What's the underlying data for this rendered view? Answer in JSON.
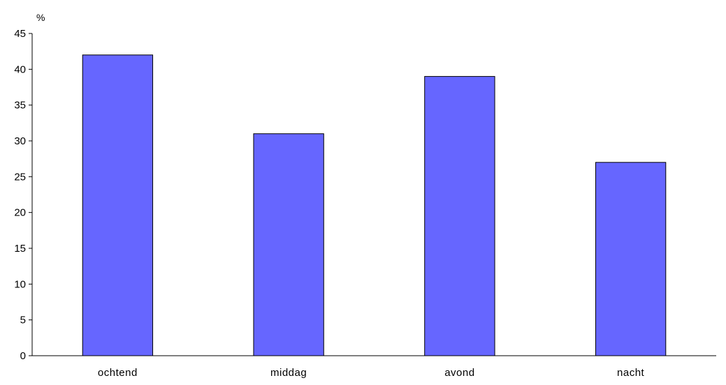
{
  "chart_data": {
    "type": "bar",
    "title": "",
    "xlabel": "",
    "ylabel": "%",
    "categories": [
      "ochtend",
      "middag",
      "avond",
      "nacht"
    ],
    "values": [
      42,
      31,
      39,
      27
    ],
    "ylim": [
      0,
      45
    ],
    "yticks": [
      0,
      5,
      10,
      15,
      20,
      25,
      30,
      35,
      40,
      45
    ],
    "grid": false,
    "legend": "none",
    "colors": {
      "bar_fill": "#6666ff",
      "bar_stroke": "#000000",
      "axis": "#000000"
    }
  }
}
